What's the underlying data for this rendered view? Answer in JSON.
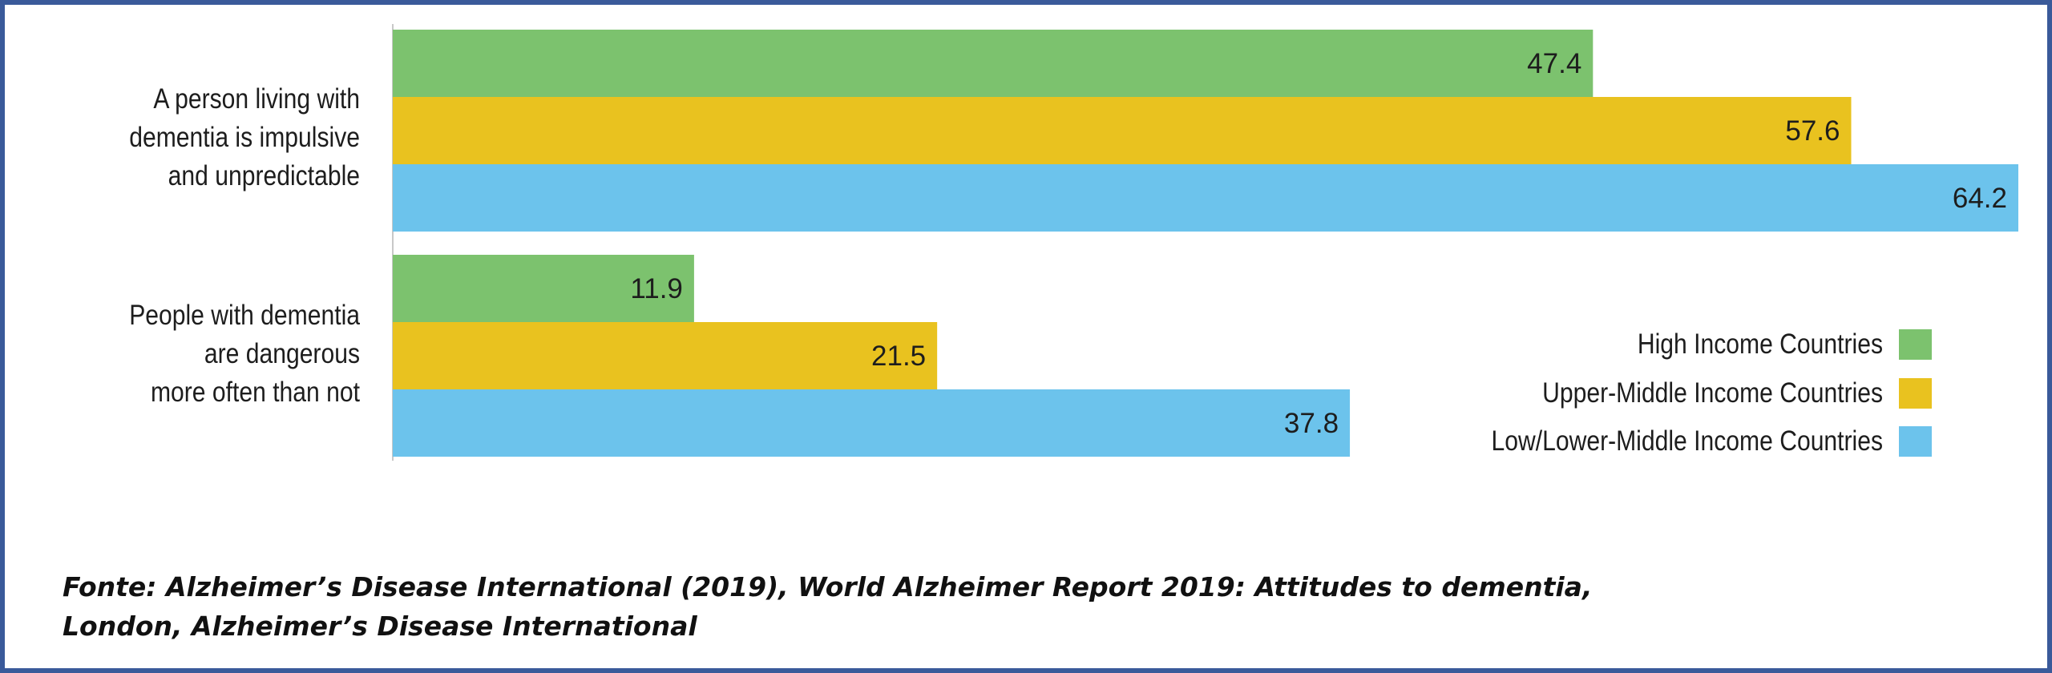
{
  "chart_data": {
    "type": "bar",
    "orientation": "horizontal",
    "categories": [
      "A person living with\ndementia is impulsive\nand unpredictable",
      "People with dementia\nare dangerous\nmore often than not"
    ],
    "series": [
      {
        "name": "High Income Countries",
        "color": "#7cc26e",
        "values": [
          47.4,
          11.9
        ]
      },
      {
        "name": "Upper-Middle Income Countries",
        "color": "#e9c21f",
        "values": [
          57.6,
          21.5
        ]
      },
      {
        "name": "Low/Lower-Middle Income Countries",
        "color": "#6cc3ec",
        "values": [
          64.2,
          37.8
        ]
      }
    ],
    "value_labels": [
      [
        "47.4",
        "11.9"
      ],
      [
        "57.6",
        "21.5"
      ],
      [
        "64.2",
        "37.8"
      ]
    ],
    "xlim": [
      0,
      64.2
    ],
    "grid": false,
    "legend_position": "right"
  },
  "source": {
    "line1": "Fonte: Alzheimer’s Disease International (2019), World Alzheimer Report 2019: Attitudes to dementia,",
    "line2": "London, Alzheimer’s Disease International"
  }
}
